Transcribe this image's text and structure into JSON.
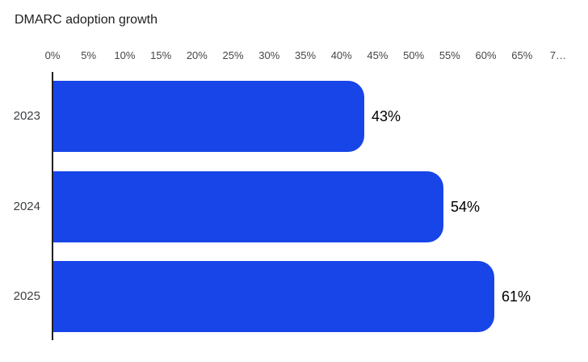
{
  "chart_data": {
    "type": "bar",
    "orientation": "horizontal",
    "title": "DMARC adoption growth",
    "categories": [
      "2023",
      "2024",
      "2025"
    ],
    "values": [
      43,
      54,
      61
    ],
    "value_labels": [
      "43%",
      "54%",
      "61%"
    ],
    "xlabel": "",
    "ylabel": "",
    "xlim": [
      0,
      70
    ],
    "x_ticks": {
      "values": [
        0,
        5,
        10,
        15,
        20,
        25,
        30,
        35,
        40,
        45,
        50,
        55,
        60,
        65,
        70
      ],
      "labels": [
        "0%",
        "5%",
        "10%",
        "15%",
        "20%",
        "25%",
        "30%",
        "35%",
        "40%",
        "45%",
        "50%",
        "55%",
        "60%",
        "65%",
        "7…"
      ]
    },
    "grid": "off",
    "legend": "none",
    "colors": {
      "bar": "#1745e8",
      "axis_line": "#212121",
      "title_text": "#212121",
      "tick_text": "#444746",
      "category_text": "#3c4043",
      "value_text": "#000000",
      "background": "#ffffff"
    }
  }
}
